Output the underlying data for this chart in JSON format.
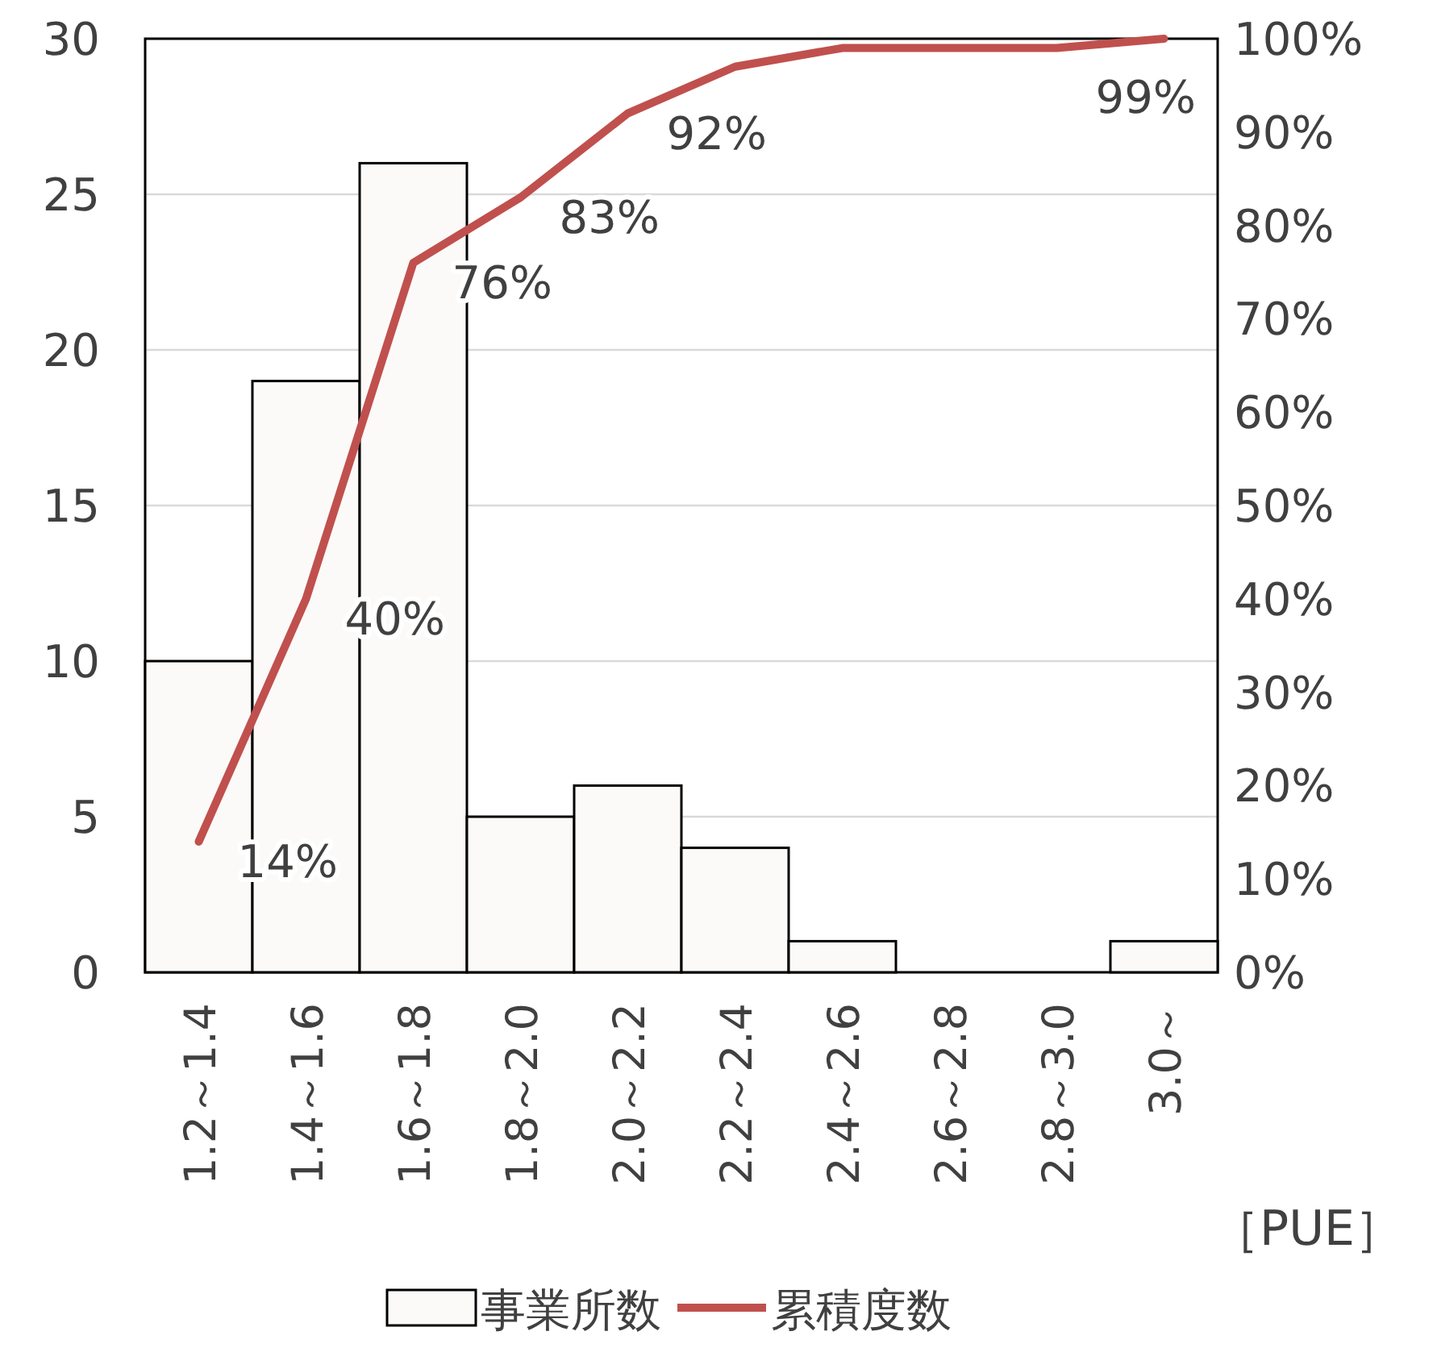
{
  "chart_data": {
    "type": "bar",
    "categories": [
      "1.2～1.4",
      "1.4～1.6",
      "1.6～1.8",
      "1.8～2.0",
      "2.0～2.2",
      "2.2～2.4",
      "2.4～2.6",
      "2.6～2.8",
      "2.8～3.0",
      "3.0～"
    ],
    "xlabel": "［PUE］",
    "series": [
      {
        "name": "事業所数",
        "color": "#fbfaf8",
        "values": [
          10,
          19,
          26,
          5,
          6,
          4,
          1,
          0,
          0,
          1
        ]
      },
      {
        "name": "累積度数",
        "type": "line",
        "axis": "y2",
        "color": "#c0504d",
        "values": [
          14,
          40,
          76,
          83,
          92,
          97,
          99,
          99,
          99,
          100
        ],
        "value_labels": [
          "14%",
          "40%",
          "76%",
          "83%",
          "92%",
          null,
          null,
          null,
          "99%",
          null
        ]
      }
    ],
    "ylim": [
      0,
      30
    ],
    "yticks": [
      0,
      5,
      10,
      15,
      20,
      25,
      30
    ],
    "y2lim": [
      0,
      100
    ],
    "y2ticks": [
      {
        "value": 0,
        "label": "0%"
      },
      {
        "value": 10,
        "label": "10%"
      },
      {
        "value": 20,
        "label": "20%"
      },
      {
        "value": 30,
        "label": "30%"
      },
      {
        "value": 40,
        "label": "40%"
      },
      {
        "value": 50,
        "label": "50%"
      },
      {
        "value": 60,
        "label": "60%"
      },
      {
        "value": 70,
        "label": "70%"
      },
      {
        "value": 80,
        "label": "80%"
      },
      {
        "value": 90,
        "label": "90%"
      },
      {
        "value": 100,
        "label": "100%"
      }
    ],
    "grid": "y",
    "legend": "bottom",
    "marker": "none",
    "line_style": "solid"
  }
}
